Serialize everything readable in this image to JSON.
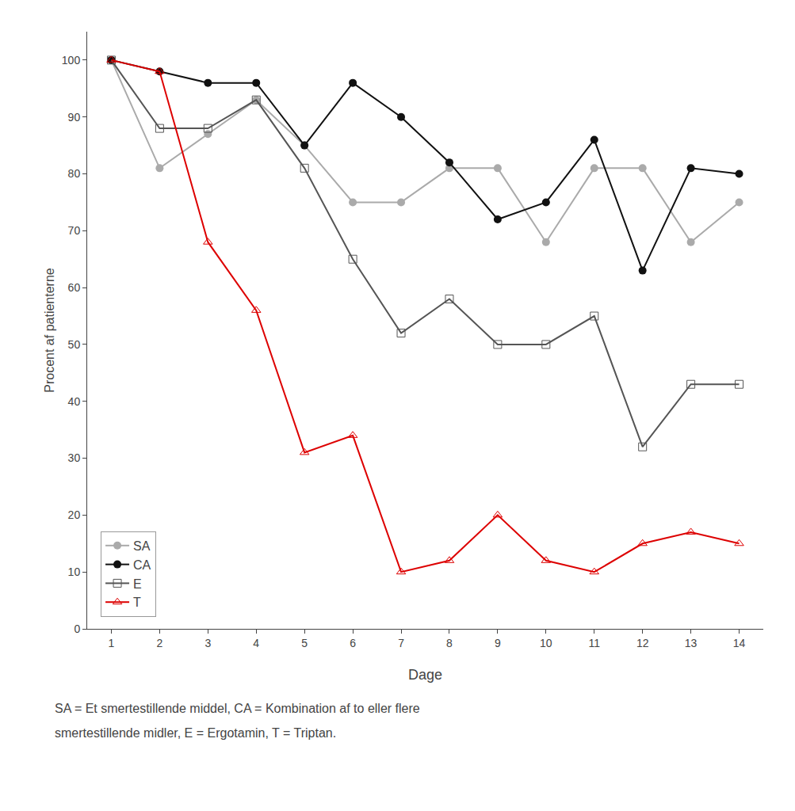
{
  "chart_data": {
    "type": "line",
    "xlabel": "Dage",
    "ylabel": "Procent af patienterne",
    "x": [
      1,
      2,
      3,
      4,
      5,
      6,
      7,
      8,
      9,
      10,
      11,
      12,
      13,
      14
    ],
    "series": [
      {
        "name": "SA",
        "color": "#aaaaaa",
        "marker": "circle",
        "values": [
          100,
          81,
          87,
          93,
          85,
          75,
          75,
          81,
          81,
          68,
          81,
          81,
          68,
          75
        ]
      },
      {
        "name": "CA",
        "color": "#111111",
        "marker": "circle",
        "values": [
          100,
          98,
          96,
          96,
          85,
          96,
          90,
          82,
          72,
          75,
          86,
          63,
          81,
          80
        ]
      },
      {
        "name": "E",
        "color": "#555555",
        "marker": "square-open",
        "values": [
          100,
          88,
          88,
          93,
          81,
          65,
          52,
          58,
          50,
          50,
          55,
          32,
          43,
          43
        ]
      },
      {
        "name": "T",
        "color": "#dd0000",
        "marker": "triangle-up-open",
        "values": [
          100,
          98,
          68,
          56,
          31,
          34,
          10,
          12,
          20,
          12,
          10,
          15,
          17,
          15
        ]
      }
    ],
    "annotations": [
      "SA = Et smertestillende middel, CA = Kombination af to eller flere",
      "smertestillende midler, E = Ergotamin, T = Triptan."
    ],
    "xlim": [
      0.5,
      14.5
    ],
    "ylim": [
      0,
      105
    ],
    "xticks": [
      1,
      2,
      3,
      4,
      5,
      6,
      7,
      8,
      9,
      10,
      11,
      12,
      13,
      14
    ],
    "yticks": [
      0,
      10,
      20,
      30,
      40,
      50,
      60,
      70,
      80,
      90,
      100
    ],
    "grid": false,
    "legend": "lower left"
  }
}
